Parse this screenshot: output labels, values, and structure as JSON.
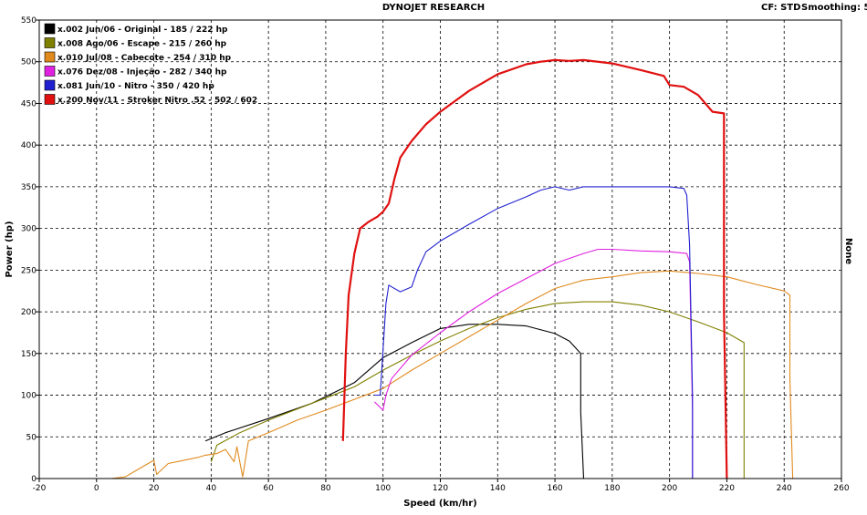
{
  "header": {
    "title": "DYNOJET RESEARCH",
    "cf_label": "CF: STD",
    "smoothing_label": "Smoothing: 5"
  },
  "side_label": "None",
  "chart_data": {
    "type": "line",
    "title": "DYNOJET RESEARCH",
    "xlabel": "Speed (km/hr)",
    "ylabel": "Power (hp)",
    "xlim": [
      -20,
      260
    ],
    "ylim": [
      0,
      550
    ],
    "x_ticks": [
      -20,
      0,
      20,
      40,
      60,
      80,
      100,
      120,
      140,
      160,
      180,
      200,
      220,
      240,
      260
    ],
    "y_ticks": [
      0,
      50,
      100,
      150,
      200,
      250,
      300,
      350,
      400,
      450,
      500,
      550
    ],
    "grid": true,
    "legend_position": "top-left",
    "series": [
      {
        "name": "x.002 Jun/06 - Original - 185 / 222 hp",
        "color": "#000000",
        "points": [
          [
            38,
            45
          ],
          [
            45,
            55
          ],
          [
            60,
            72
          ],
          [
            75,
            90
          ],
          [
            90,
            115
          ],
          [
            100,
            145
          ],
          [
            110,
            163
          ],
          [
            120,
            180
          ],
          [
            130,
            185
          ],
          [
            140,
            185
          ],
          [
            150,
            183
          ],
          [
            160,
            174
          ],
          [
            165,
            165
          ],
          [
            169,
            150
          ],
          [
            169,
            80
          ],
          [
            170,
            0
          ]
        ]
      },
      {
        "name": "x.008 Ago/06 - Escape - 215 / 260 hp",
        "color": "#808000",
        "points": [
          [
            40,
            20
          ],
          [
            42,
            40
          ],
          [
            50,
            55
          ],
          [
            60,
            70
          ],
          [
            75,
            90
          ],
          [
            90,
            110
          ],
          [
            100,
            130
          ],
          [
            110,
            148
          ],
          [
            120,
            165
          ],
          [
            130,
            180
          ],
          [
            140,
            193
          ],
          [
            150,
            203
          ],
          [
            160,
            210
          ],
          [
            170,
            212
          ],
          [
            180,
            212
          ],
          [
            190,
            208
          ],
          [
            200,
            200
          ],
          [
            210,
            188
          ],
          [
            220,
            175
          ],
          [
            226,
            163
          ],
          [
            226,
            80
          ],
          [
            226,
            0
          ]
        ]
      },
      {
        "name": "x.010 Jul/08 - Cabecote - 254 / 310 hp",
        "color": "#e08a1e",
        "points": [
          [
            5,
            0
          ],
          [
            10,
            2
          ],
          [
            15,
            12
          ],
          [
            20,
            22
          ],
          [
            21,
            5
          ],
          [
            25,
            18
          ],
          [
            35,
            25
          ],
          [
            38,
            28
          ],
          [
            42,
            30
          ],
          [
            45,
            35
          ],
          [
            48,
            20
          ],
          [
            49,
            38
          ],
          [
            51,
            2
          ],
          [
            53,
            45
          ],
          [
            60,
            55
          ],
          [
            70,
            70
          ],
          [
            80,
            82
          ],
          [
            90,
            95
          ],
          [
            100,
            108
          ],
          [
            110,
            130
          ],
          [
            120,
            150
          ],
          [
            130,
            170
          ],
          [
            140,
            190
          ],
          [
            150,
            210
          ],
          [
            160,
            228
          ],
          [
            170,
            238
          ],
          [
            180,
            242
          ],
          [
            190,
            247
          ],
          [
            200,
            249
          ],
          [
            210,
            246
          ],
          [
            220,
            242
          ],
          [
            230,
            233
          ],
          [
            240,
            225
          ],
          [
            242,
            220
          ],
          [
            242,
            120
          ],
          [
            243,
            0
          ]
        ]
      },
      {
        "name": "x.076 Dez/08 - Injeção - 282 / 340 hp",
        "color": "#e020e0",
        "points": [
          [
            97,
            92
          ],
          [
            100,
            82
          ],
          [
            101,
            100
          ],
          [
            103,
            120
          ],
          [
            110,
            148
          ],
          [
            120,
            175
          ],
          [
            130,
            200
          ],
          [
            140,
            222
          ],
          [
            150,
            240
          ],
          [
            160,
            258
          ],
          [
            170,
            270
          ],
          [
            175,
            275
          ],
          [
            180,
            275
          ],
          [
            190,
            273
          ],
          [
            200,
            272
          ],
          [
            206,
            270
          ],
          [
            207,
            260
          ],
          [
            208,
            80
          ],
          [
            208,
            0
          ]
        ]
      },
      {
        "name": "x.081 Jun/10 - Nitro - 350 / 420 hp",
        "color": "#2020d0",
        "points": [
          [
            97,
            100
          ],
          [
            99,
            100
          ],
          [
            101,
            210
          ],
          [
            102,
            232
          ],
          [
            103,
            230
          ],
          [
            106,
            224
          ],
          [
            110,
            230
          ],
          [
            112,
            250
          ],
          [
            115,
            272
          ],
          [
            120,
            285
          ],
          [
            130,
            305
          ],
          [
            140,
            324
          ],
          [
            150,
            338
          ],
          [
            155,
            346
          ],
          [
            160,
            350
          ],
          [
            165,
            346
          ],
          [
            170,
            350
          ],
          [
            180,
            350
          ],
          [
            190,
            350
          ],
          [
            200,
            350
          ],
          [
            205,
            348
          ],
          [
            206,
            340
          ],
          [
            207,
            280
          ],
          [
            208,
            100
          ],
          [
            208,
            0
          ]
        ]
      },
      {
        "name": "x.200 Nov/11 - Stroker Nitro .52 - 502 / 602",
        "color": "#e01010",
        "points": [
          [
            86,
            45
          ],
          [
            87,
            150
          ],
          [
            88,
            220
          ],
          [
            90,
            270
          ],
          [
            92,
            300
          ],
          [
            95,
            308
          ],
          [
            98,
            314
          ],
          [
            100,
            320
          ],
          [
            102,
            330
          ],
          [
            104,
            360
          ],
          [
            106,
            385
          ],
          [
            110,
            405
          ],
          [
            115,
            425
          ],
          [
            120,
            440
          ],
          [
            130,
            465
          ],
          [
            140,
            485
          ],
          [
            150,
            497
          ],
          [
            155,
            500
          ],
          [
            160,
            502
          ],
          [
            165,
            501
          ],
          [
            170,
            502
          ],
          [
            180,
            498
          ],
          [
            190,
            490
          ],
          [
            198,
            483
          ],
          [
            200,
            472
          ],
          [
            205,
            470
          ],
          [
            210,
            460
          ],
          [
            215,
            440
          ],
          [
            219,
            438
          ],
          [
            219,
            380
          ],
          [
            219,
            200
          ],
          [
            220,
            0
          ]
        ]
      }
    ]
  }
}
